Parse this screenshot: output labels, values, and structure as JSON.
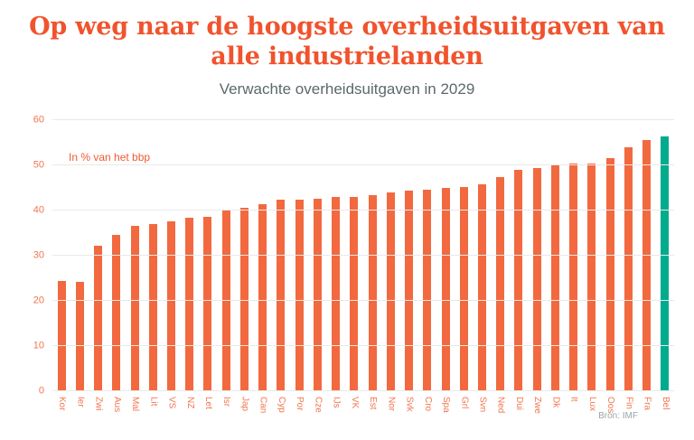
{
  "header": {
    "title": "Op weg naar de hoogste overheidsuitgaven van alle industrielanden",
    "subtitle": "Verwachte overheidsuitgaven in 2029"
  },
  "footer": {
    "source": "Bron: IMF"
  },
  "chart_data": {
    "type": "bar",
    "title": "Op weg naar de hoogste overheidsuitgaven van alle industrielanden",
    "subtitle": "Verwachte overheidsuitgaven in 2029",
    "annotation": "In % van het bbp",
    "source": "Bron: IMF",
    "categories": [
      "Kor",
      "Ier",
      "Zwi",
      "Aus",
      "Mal",
      "Lit",
      "VS",
      "NZ",
      "Let",
      "Isr",
      "Jap",
      "Can",
      "Cyp",
      "Por",
      "Cze",
      "IJs",
      "VK",
      "Est",
      "Nor",
      "Svk",
      "Cro",
      "Spa",
      "Grl",
      "Svn",
      "Ned",
      "Dui",
      "Zwe",
      "Dk",
      "It",
      "Lux",
      "Oos",
      "Fin",
      "Fra",
      "Bel"
    ],
    "values": [
      24.4,
      24.2,
      32.2,
      34.5,
      36.6,
      37.0,
      37.5,
      38.4,
      38.6,
      40.1,
      40.5,
      41.3,
      42.4,
      42.4,
      42.5,
      42.9,
      43.0,
      43.4,
      44.0,
      44.4,
      44.5,
      45.0,
      45.1,
      45.8,
      47.4,
      48.9,
      49.4,
      49.9,
      50.3,
      50.4,
      51.5,
      53.9,
      55.5,
      56.4
    ],
    "xlabel": "",
    "ylabel": "",
    "ylim": [
      0,
      60
    ],
    "yticks": [
      0,
      10,
      20,
      30,
      40,
      50,
      60
    ],
    "grid": true,
    "legend": "none",
    "bar_color": "#F2693F",
    "highlight_category": "Bel",
    "highlight_color": "#00AB8E"
  },
  "colors": {
    "title": "#F0532D",
    "subtitle": "#5C686C",
    "axis_labels": "#F0764F",
    "annotation": "#EE5A33",
    "source": "#9AA5A8",
    "grid": "#E9E9E9",
    "background": "#FFFFFF"
  }
}
